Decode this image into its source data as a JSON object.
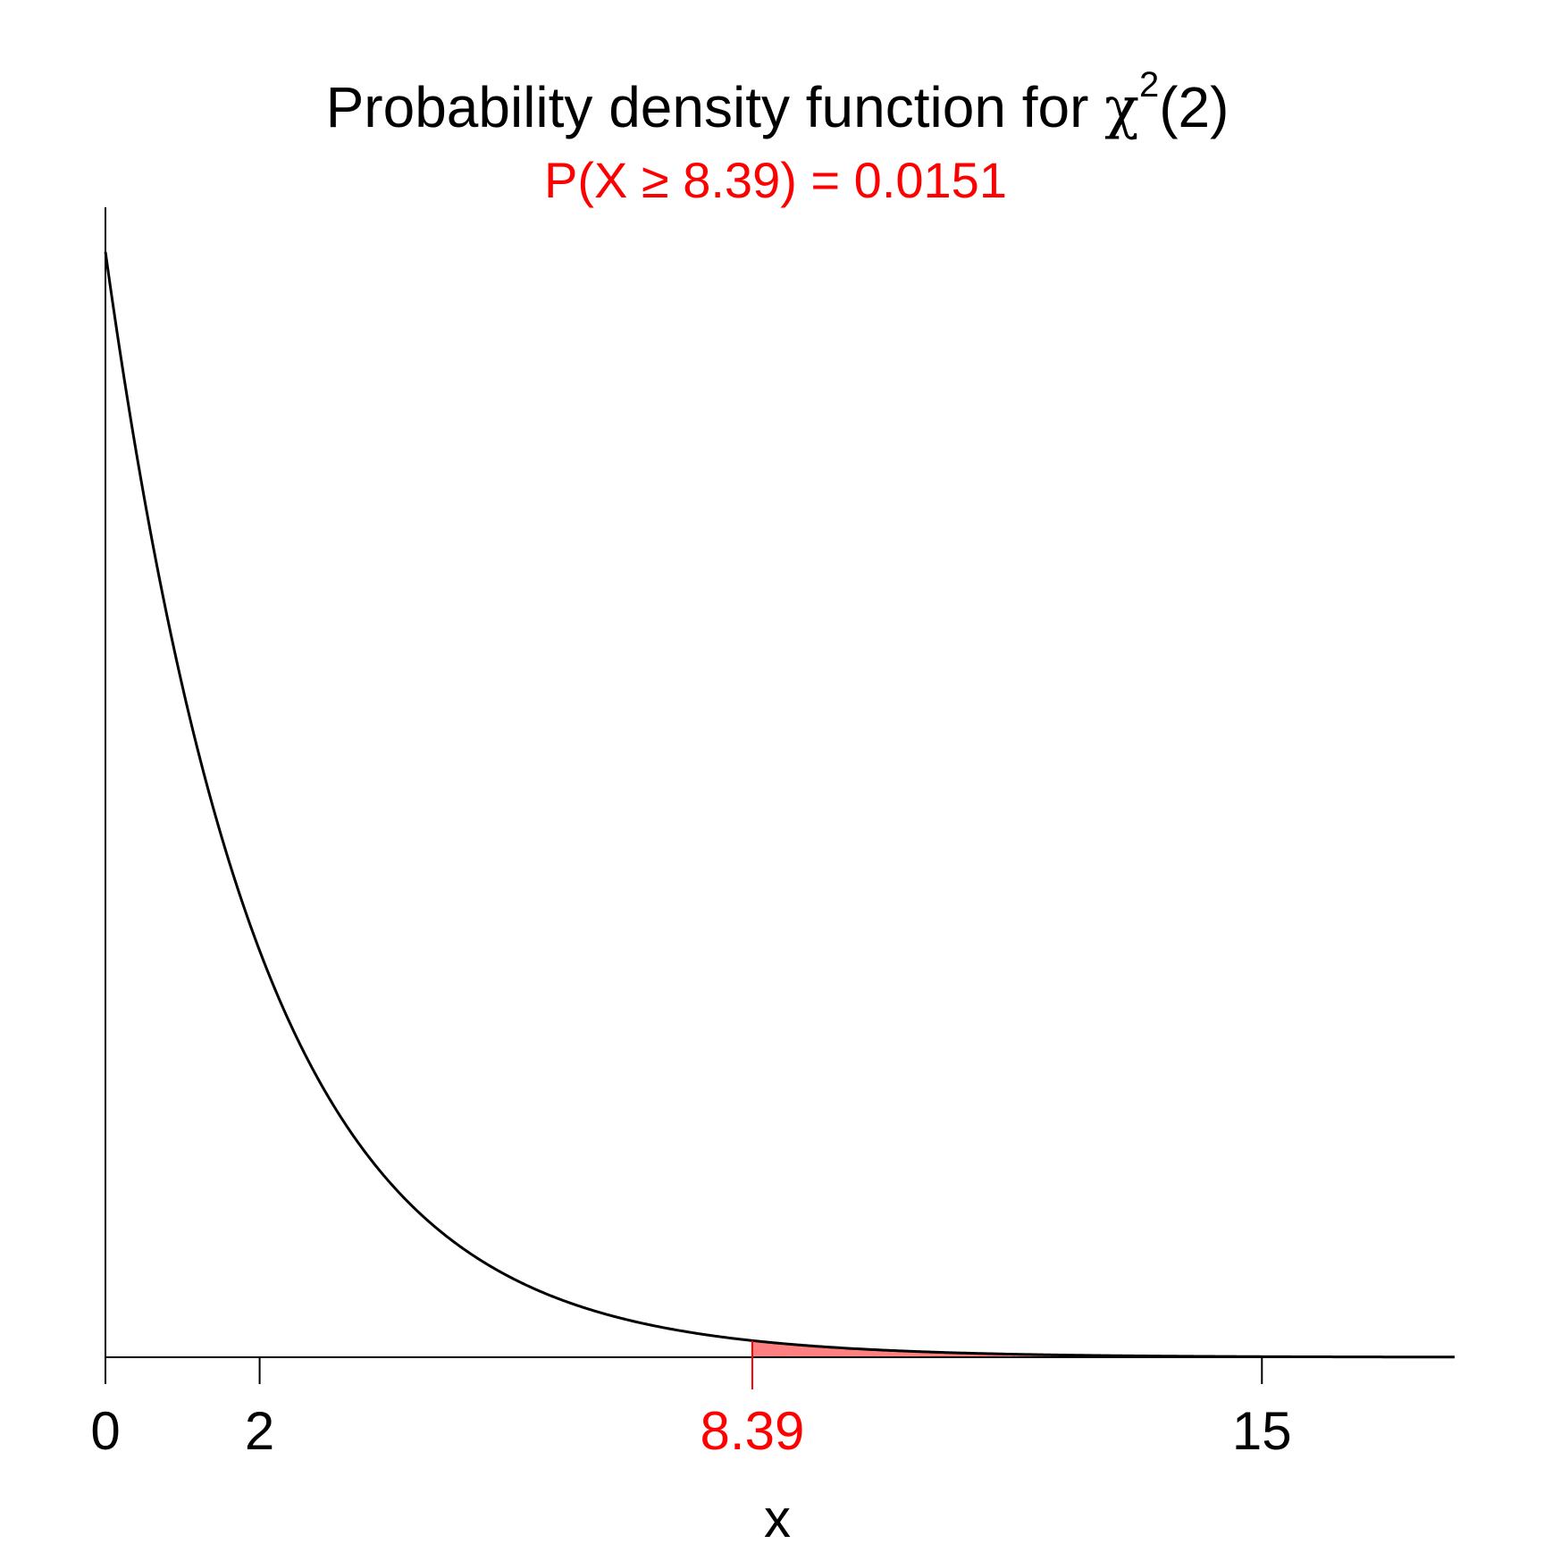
{
  "chart_data": {
    "type": "area",
    "title": {
      "prefix": "Probability density function for ",
      "symbol": "χ",
      "superscript": "2",
      "suffix": "(2)"
    },
    "subtitle": "P(X ≥ 8.39) = 0.0151",
    "xlabel": "x",
    "ylabel": "",
    "xlim": [
      0,
      17.5
    ],
    "ylim": [
      0,
      0.5
    ],
    "distribution": "chi-squared",
    "degrees_of_freedom": 2,
    "threshold": 8.39,
    "tail_probability": 0.0151,
    "x_ticks": [
      {
        "value": 0,
        "label": "0",
        "highlight": false
      },
      {
        "value": 2,
        "label": "2",
        "highlight": false
      },
      {
        "value": 8.39,
        "label": "8.39",
        "highlight": true
      },
      {
        "value": 15,
        "label": "15",
        "highlight": false
      }
    ],
    "grid": false,
    "colors": {
      "curve": "#000000",
      "highlight": "#ff0000",
      "shaded_area": "#ff8080",
      "axes": "#000000"
    }
  }
}
